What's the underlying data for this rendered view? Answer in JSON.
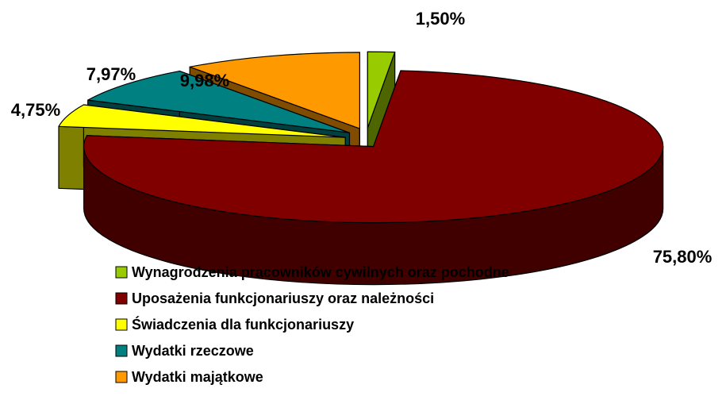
{
  "chart_data": {
    "type": "pie3d",
    "categories": [
      "Wynagrodzenia pracowników cywilnych oraz pochodne",
      "Uposażenia funkcjonariuszy oraz należności",
      "Świadczenia dla funkcjonariuszy",
      "Wydatki rzeczowe",
      "Wydatki majątkowe"
    ],
    "values": [
      1.5,
      75.8,
      4.75,
      7.97,
      9.98
    ],
    "value_labels": [
      "1,50%",
      "75,80%",
      "4,75%",
      "7,97%",
      "9,98%"
    ],
    "colors": [
      "#99cc00",
      "#800000",
      "#ffff00",
      "#008080",
      "#ff9900"
    ]
  }
}
